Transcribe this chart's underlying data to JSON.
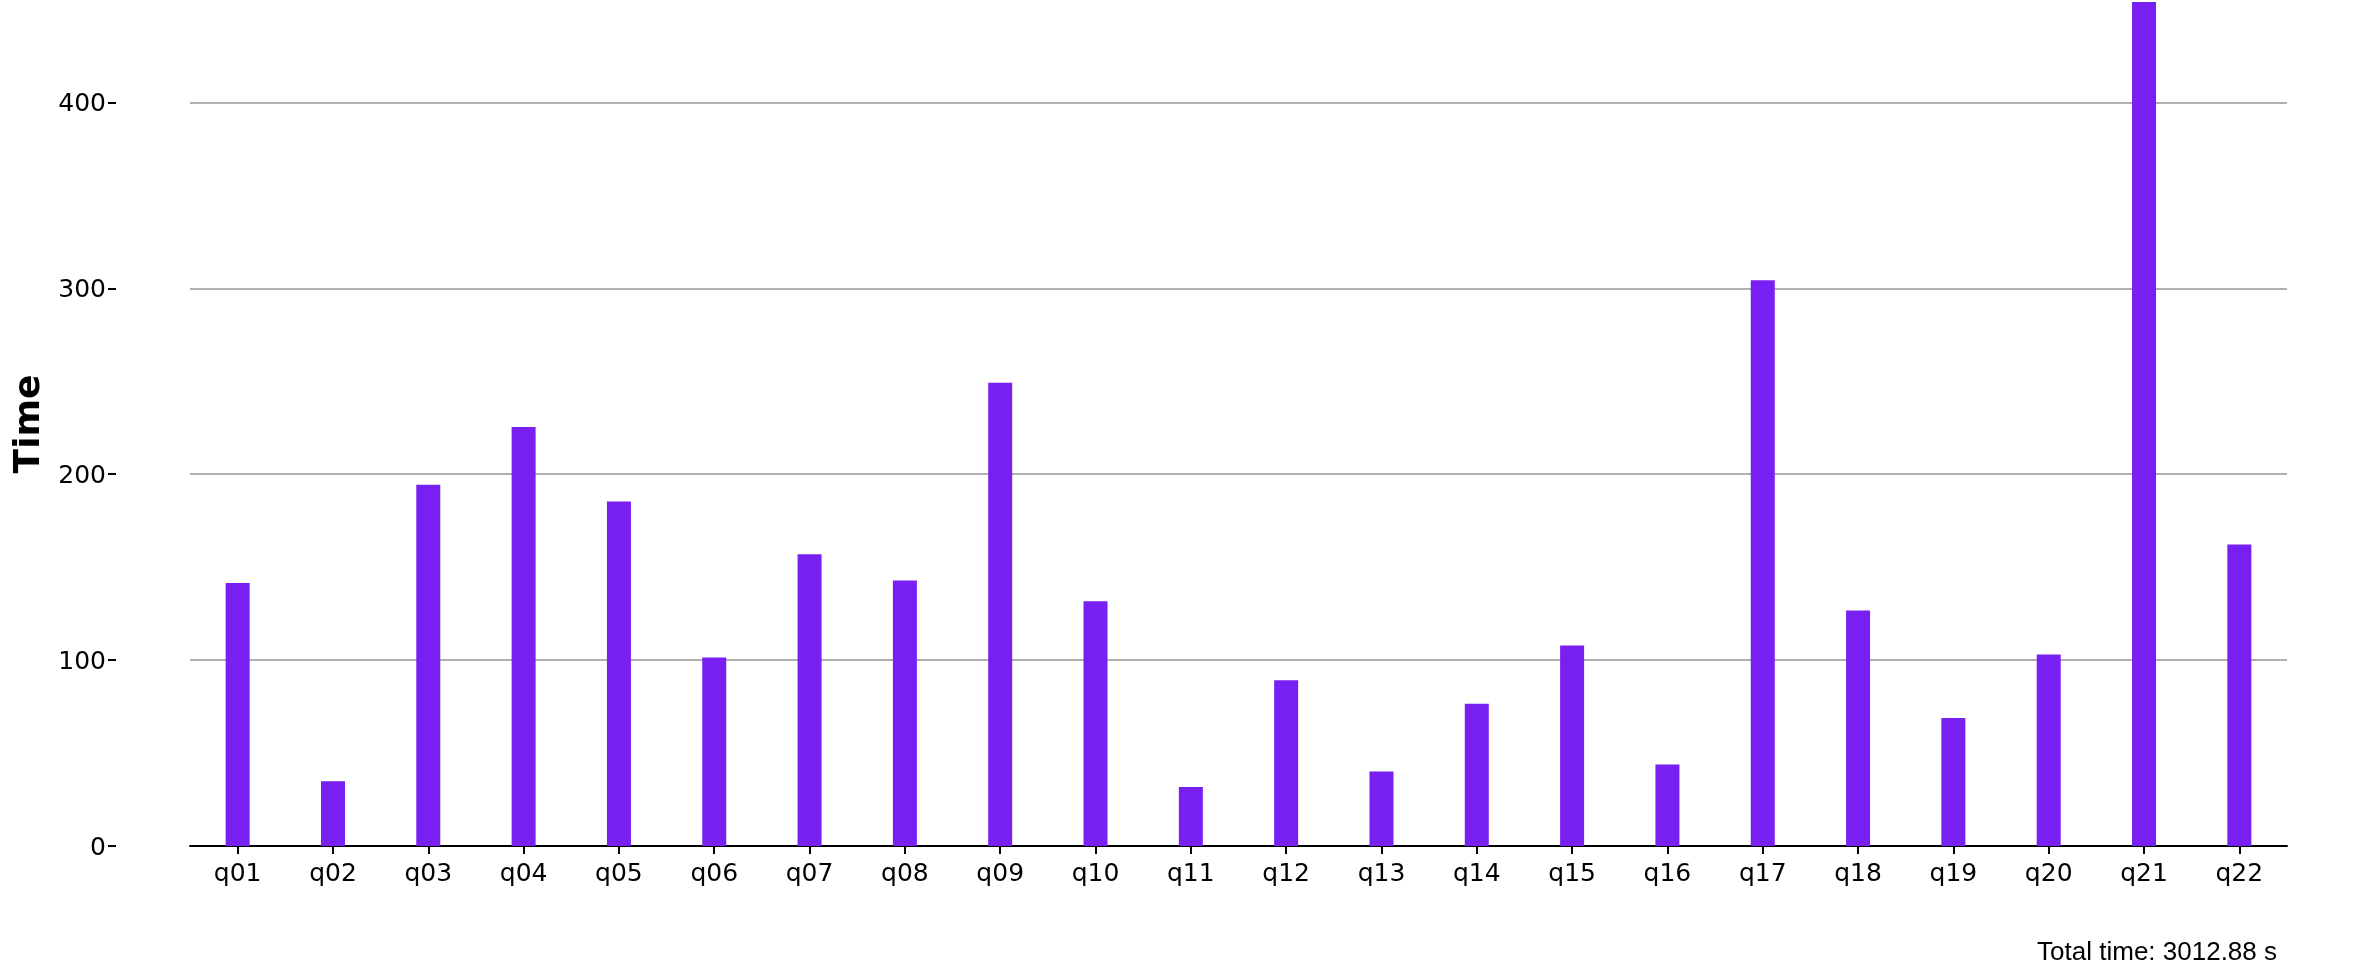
{
  "chart_data": {
    "type": "bar",
    "ylabel": "Time",
    "categories": [
      "q01",
      "q02",
      "q03",
      "q04",
      "q05",
      "q06",
      "q07",
      "q08",
      "q09",
      "q10",
      "q11",
      "q12",
      "q13",
      "q14",
      "q15",
      "q16",
      "q17",
      "q18",
      "q19",
      "q20",
      "q21",
      "q22"
    ],
    "values": [
      141.5,
      34.8,
      194.3,
      225.4,
      185.3,
      101.4,
      157.0,
      142.8,
      249.2,
      131.7,
      31.8,
      89.1,
      40.1,
      76.5,
      107.9,
      43.8,
      304.3,
      126.7,
      68.8,
      103.0,
      454,
      162.2
    ],
    "color": "#781ff1",
    "ylim": [
      0,
      454
    ],
    "yticks": [
      0,
      100,
      200,
      300,
      400
    ],
    "grid": "y",
    "annotations": [
      "Total time: 3012.88 s"
    ]
  }
}
